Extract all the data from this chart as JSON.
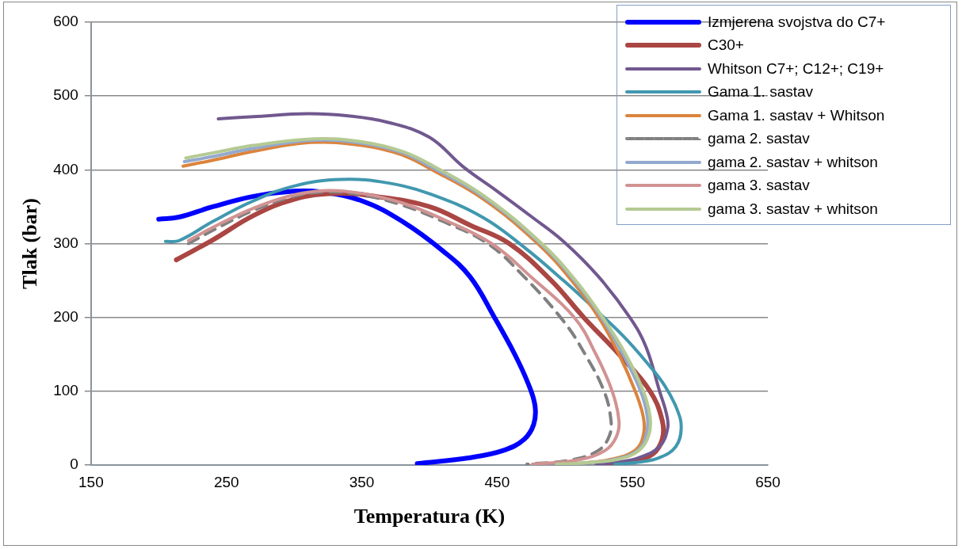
{
  "chart_data": {
    "type": "line",
    "xlabel": "Temperatura (K)",
    "ylabel": "Tlak (bar)",
    "xlim": [
      150,
      650
    ],
    "xticks": [
      150,
      250,
      350,
      450,
      550,
      650
    ],
    "ylim": [
      0,
      600
    ],
    "yticks": [
      0,
      100,
      200,
      300,
      400,
      500,
      600
    ],
    "grid": "y",
    "legend": "top right",
    "marker": "none",
    "series": [
      {
        "name": "Izmjerena svojstva do C7+",
        "color": "#0000ff",
        "x": [
          200,
          215,
          240,
          270,
          300,
          320,
          350,
          380,
          410,
          430,
          448,
          463,
          473,
          478,
          477,
          470,
          455,
          430,
          391
        ],
        "values": [
          333,
          336,
          350,
          364,
          371,
          370,
          358,
          330,
          290,
          255,
          200,
          150,
          110,
          80,
          55,
          35,
          20,
          10,
          2
        ]
      },
      {
        "name": "C30+",
        "color": "#aa4643",
        "x": [
          213,
          240,
          270,
          300,
          330,
          360,
          400,
          430,
          459,
          490,
          514,
          540,
          563,
          572,
          572,
          565,
          550,
          529
        ],
        "values": [
          278,
          305,
          338,
          360,
          368,
          364,
          350,
          325,
          300,
          250,
          200,
          150,
          100,
          60,
          35,
          15,
          5,
          1
        ]
      },
      {
        "name": "Whitson C7+; C12+; C19+",
        "color": "#71588f",
        "x": [
          244,
          270,
          310,
          340,
          370,
          400,
          425,
          450,
          475,
          499,
          525,
          548,
          560,
          570,
          575,
          576,
          570,
          555,
          540,
          523
        ],
        "values": [
          469,
          472,
          476,
          473,
          464,
          444,
          404,
          371,
          337,
          303,
          255,
          200,
          160,
          100,
          70,
          50,
          25,
          10,
          4,
          1
        ]
      },
      {
        "name": "Gama 1. sastav",
        "color": "#4198af",
        "x": [
          205,
          215,
          240,
          270,
          300,
          335,
          370,
          401,
          440,
          470,
          499,
          520,
          543,
          560,
          574,
          583,
          586,
          582,
          570,
          555,
          537
        ],
        "values": [
          303,
          304,
          330,
          358,
          378,
          387,
          382,
          367,
          335,
          295,
          250,
          215,
          175,
          140,
          107,
          75,
          50,
          25,
          10,
          4,
          1
        ]
      },
      {
        "name": "Gama 1. sastav + Whitson",
        "color": "#db843d",
        "x": [
          218,
          240,
          270,
          312,
          350,
          380,
          401,
          440,
          480,
          505,
          525,
          540,
          552,
          558,
          558,
          552,
          535,
          515,
          494
        ],
        "values": [
          405,
          413,
          425,
          437,
          433,
          420,
          401,
          360,
          300,
          250,
          200,
          150,
          100,
          65,
          40,
          20,
          8,
          3,
          1
        ]
      },
      {
        "name": "gama 2. sastav",
        "color": "#808080",
        "line_style": "dashed",
        "x": [
          222,
          240,
          270,
          300,
          325,
          350,
          380,
          410,
          443,
          470,
          499,
          515,
          529,
          534,
          533,
          525,
          505,
          472
        ],
        "values": [
          300,
          318,
          345,
          364,
          370,
          366,
          352,
          330,
          300,
          255,
          195,
          150,
          100,
          62,
          40,
          20,
          7,
          1
        ]
      },
      {
        "name": "gama 2. sastav + whitson",
        "color": "#93a9cf",
        "x": [
          219,
          240,
          270,
          314,
          350,
          380,
          402,
          440,
          482,
          507,
          527,
          543,
          556,
          561,
          560,
          554,
          538,
          515,
          494
        ],
        "values": [
          411,
          418,
          429,
          440,
          436,
          423,
          403,
          363,
          300,
          250,
          200,
          150,
          100,
          65,
          40,
          20,
          8,
          3,
          1
        ]
      },
      {
        "name": "gama 3. sastav",
        "color": "#d19392",
        "x": [
          222,
          240,
          270,
          300,
          325,
          350,
          380,
          410,
          446,
          475,
          507,
          523,
          535,
          540,
          538,
          530,
          510,
          476
        ],
        "values": [
          304,
          322,
          348,
          366,
          372,
          368,
          355,
          333,
          300,
          255,
          200,
          150,
          100,
          60,
          38,
          20,
          7,
          1
        ]
      },
      {
        "name": "gama 3. sastav + whitson",
        "color": "#b5ca92",
        "x": [
          220,
          240,
          270,
          315,
          350,
          380,
          403,
          440,
          483,
          508,
          528,
          545,
          558,
          563,
          562,
          555,
          540,
          515,
          494
        ],
        "values": [
          416,
          423,
          433,
          442,
          438,
          425,
          405,
          365,
          300,
          250,
          200,
          150,
          100,
          65,
          40,
          20,
          8,
          3,
          1
        ]
      }
    ]
  }
}
